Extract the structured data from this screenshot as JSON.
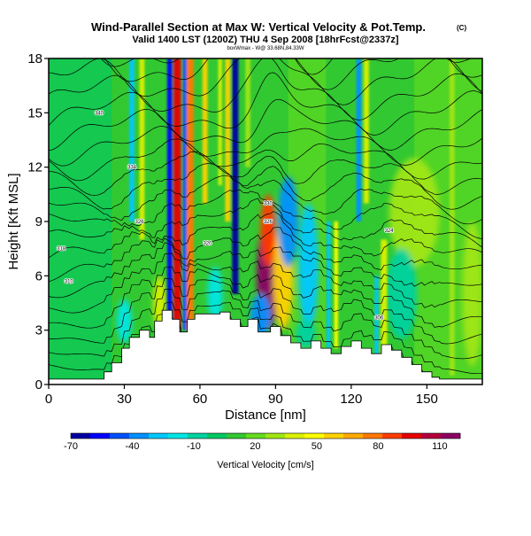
{
  "chart_data": {
    "type": "heatmap",
    "title": "Wind-Parallel Section at Max W: Vertical Velocity & Pot.Temp.",
    "title_mark": "(C)",
    "subtitle": "Valid 1400 LST (1200Z) THU 4 Sep 2008 [18hrFcst@2337z]",
    "footnote": "boxWmax - W@ 33.68N,84.33W",
    "xlabel": "Distance [nm]",
    "ylabel": "Height [Kft MSL]",
    "xlim": [
      0,
      172
    ],
    "ylim": [
      0,
      18
    ],
    "xticks": [
      {
        "value": 0,
        "label": "0"
      },
      {
        "value": 30,
        "label": "30"
      },
      {
        "value": 60,
        "label": "60"
      },
      {
        "value": 90,
        "label": "90"
      },
      {
        "value": 120,
        "label": "120"
      },
      {
        "value": 150,
        "label": "150"
      }
    ],
    "yticks": [
      {
        "value": 0,
        "label": "0"
      },
      {
        "value": 3,
        "label": "3"
      },
      {
        "value": 6,
        "label": "6"
      },
      {
        "value": 9,
        "label": "9"
      },
      {
        "value": 12,
        "label": "12"
      },
      {
        "value": 15,
        "label": "15"
      },
      {
        "value": 18,
        "label": "18"
      }
    ],
    "colorbar": {
      "label": "Vertical Velocity [cm/s]",
      "min": -70,
      "max": 120,
      "ticks": [
        {
          "value": -70,
          "label": "-70"
        },
        {
          "value": -40,
          "label": "-40"
        },
        {
          "value": -10,
          "label": "-10"
        },
        {
          "value": 20,
          "label": "20"
        },
        {
          "value": 50,
          "label": "50"
        },
        {
          "value": 80,
          "label": "80"
        },
        {
          "value": 110,
          "label": "110"
        }
      ],
      "colors": [
        "#0000a0",
        "#0000ff",
        "#0050ff",
        "#0090ff",
        "#00c8ff",
        "#00e6e6",
        "#00d2a0",
        "#00c864",
        "#32c832",
        "#64dc1e",
        "#a0e614",
        "#dcf000",
        "#ffff00",
        "#ffd200",
        "#ffaa00",
        "#ff7800",
        "#ff3c00",
        "#e60000",
        "#b4003c",
        "#8c0064"
      ]
    },
    "terrain": [
      [
        0,
        0.3
      ],
      [
        22,
        0.3
      ],
      [
        22,
        0.7
      ],
      [
        25,
        0.7
      ],
      [
        25,
        1.2
      ],
      [
        29,
        1.2
      ],
      [
        29,
        2.0
      ],
      [
        32,
        2.0
      ],
      [
        32,
        2.6
      ],
      [
        36,
        2.6
      ],
      [
        36,
        3.0
      ],
      [
        40,
        3.0
      ],
      [
        40,
        2.6
      ],
      [
        42,
        2.6
      ],
      [
        42,
        3.5
      ],
      [
        45,
        3.5
      ],
      [
        45,
        4.1
      ],
      [
        49,
        4.1
      ],
      [
        49,
        3.6
      ],
      [
        52,
        3.6
      ],
      [
        52,
        2.9
      ],
      [
        55,
        2.9
      ],
      [
        55,
        3.6
      ],
      [
        58,
        3.6
      ],
      [
        58,
        3.9
      ],
      [
        68,
        3.9
      ],
      [
        68,
        4.0
      ],
      [
        72,
        4.0
      ],
      [
        72,
        3.6
      ],
      [
        76,
        3.6
      ],
      [
        76,
        3.2
      ],
      [
        79,
        3.2
      ],
      [
        79,
        3.6
      ],
      [
        83,
        3.6
      ],
      [
        83,
        2.9
      ],
      [
        88,
        2.9
      ],
      [
        88,
        3.2
      ],
      [
        92,
        3.2
      ],
      [
        92,
        2.7
      ],
      [
        96,
        2.7
      ],
      [
        96,
        2.3
      ],
      [
        100,
        2.3
      ],
      [
        100,
        2.0
      ],
      [
        104,
        2.0
      ],
      [
        104,
        2.4
      ],
      [
        108,
        2.4
      ],
      [
        108,
        2.0
      ],
      [
        112,
        2.0
      ],
      [
        112,
        1.7
      ],
      [
        116,
        1.7
      ],
      [
        116,
        2.1
      ],
      [
        120,
        2.1
      ],
      [
        120,
        2.4
      ],
      [
        124,
        2.4
      ],
      [
        124,
        2.0
      ],
      [
        128,
        2.0
      ],
      [
        128,
        1.7
      ],
      [
        132,
        1.7
      ],
      [
        132,
        2.2
      ],
      [
        136,
        2.2
      ],
      [
        136,
        1.9
      ],
      [
        140,
        1.9
      ],
      [
        140,
        1.5
      ],
      [
        144,
        1.5
      ],
      [
        144,
        1.1
      ],
      [
        148,
        1.1
      ],
      [
        148,
        0.7
      ],
      [
        152,
        0.7
      ],
      [
        152,
        0.4
      ],
      [
        155,
        0.4
      ],
      [
        155,
        0.3
      ],
      [
        172,
        0.3
      ]
    ],
    "w_columns": [
      {
        "x": 51,
        "width": 3,
        "ymin": 3,
        "ymax": 18,
        "w": 100
      },
      {
        "x": 56,
        "width": 3,
        "ymin": 3,
        "ymax": 18,
        "w": 80
      },
      {
        "x": 48,
        "width": 2,
        "ymin": 3,
        "ymax": 18,
        "w": -60
      },
      {
        "x": 54,
        "width": 1.5,
        "ymin": 3,
        "ymax": 18,
        "w": -50
      },
      {
        "x": 62,
        "width": 2,
        "ymin": 10,
        "ymax": 18,
        "w": 60
      },
      {
        "x": 74,
        "width": 2.5,
        "ymin": 5,
        "ymax": 18,
        "w": -65
      },
      {
        "x": 71,
        "width": 2,
        "ymin": 9,
        "ymax": 18,
        "w": 60
      },
      {
        "x": 68,
        "width": 1.5,
        "ymin": 11,
        "ymax": 18,
        "w": 40
      },
      {
        "x": 79,
        "width": 2,
        "ymin": 12,
        "ymax": 18,
        "w": 30
      },
      {
        "x": 33,
        "width": 2,
        "ymin": 9,
        "ymax": 18,
        "w": -30
      },
      {
        "x": 37,
        "width": 2,
        "ymin": 8,
        "ymax": 18,
        "w": 40
      },
      {
        "x": 114,
        "width": 1.5,
        "ymin": 2,
        "ymax": 9,
        "w": 45
      },
      {
        "x": 111,
        "width": 1.5,
        "ymin": 2,
        "ymax": 9,
        "w": -30
      },
      {
        "x": 123,
        "width": 2,
        "ymin": 9,
        "ymax": 18,
        "w": -40
      },
      {
        "x": 126,
        "width": 2,
        "ymin": 10,
        "ymax": 18,
        "w": 40
      },
      {
        "x": 130,
        "width": 1.5,
        "ymin": 1.5,
        "ymax": 6,
        "w": -30
      },
      {
        "x": 133,
        "width": 2.5,
        "ymin": 1.5,
        "ymax": 8,
        "w": 35
      },
      {
        "x": 160,
        "width": 2,
        "ymin": 0.5,
        "ymax": 18,
        "w": 25
      }
    ],
    "w_blobs": [
      {
        "x": 87,
        "y": 6,
        "rx": 4.5,
        "ry": 3.0,
        "w": 120
      },
      {
        "x": 87,
        "y": 8.5,
        "rx": 3.0,
        "ry": 2.0,
        "w": 90
      },
      {
        "x": 93,
        "y": 6,
        "rx": 4.0,
        "ry": 3.0,
        "w": 55
      },
      {
        "x": 84,
        "y": 3.8,
        "rx": 4.0,
        "ry": 1.2,
        "w": -40
      },
      {
        "x": 95,
        "y": 9,
        "rx": 4.0,
        "ry": 2.5,
        "w": -40
      },
      {
        "x": 103,
        "y": 6.5,
        "rx": 4.0,
        "ry": 3.5,
        "w": -25
      },
      {
        "x": 102,
        "y": 2.8,
        "rx": 4.0,
        "ry": 0.8,
        "w": -10
      },
      {
        "x": 66,
        "y": 5.0,
        "rx": 3.0,
        "ry": 1.5,
        "w": -15
      },
      {
        "x": 44,
        "y": 4.5,
        "rx": 2.5,
        "ry": 1.5,
        "w": 40
      },
      {
        "x": 30,
        "y": 3.5,
        "rx": 3.0,
        "ry": 1.2,
        "w": -20
      },
      {
        "x": 145,
        "y": 9.5,
        "rx": 10.0,
        "ry": 3.0,
        "w": 25
      },
      {
        "x": 140,
        "y": 5.0,
        "rx": 6.0,
        "ry": 2.5,
        "w": -10
      },
      {
        "x": 168,
        "y": 5.0,
        "rx": 4.0,
        "ry": 4.0,
        "w": 30
      }
    ],
    "theta_levels": [
      298,
      300,
      302,
      304,
      306,
      308,
      310,
      312,
      314,
      316,
      318,
      320,
      322,
      324,
      326,
      328,
      330,
      332,
      334,
      336,
      338,
      340
    ],
    "theta_labels": [
      {
        "x": 5,
        "y": 7.5,
        "label": "318"
      },
      {
        "x": 8,
        "y": 5.7,
        "label": "310"
      },
      {
        "x": 20,
        "y": 15.0,
        "label": "340"
      },
      {
        "x": 33,
        "y": 12.0,
        "label": "334"
      },
      {
        "x": 36,
        "y": 9.0,
        "label": "326"
      },
      {
        "x": 63,
        "y": 7.8,
        "label": "320"
      },
      {
        "x": 87,
        "y": 10.0,
        "label": "330"
      },
      {
        "x": 87,
        "y": 9.0,
        "label": "326"
      },
      {
        "x": 135,
        "y": 8.5,
        "label": "324"
      },
      {
        "x": 131,
        "y": 3.7,
        "label": "306"
      }
    ]
  }
}
